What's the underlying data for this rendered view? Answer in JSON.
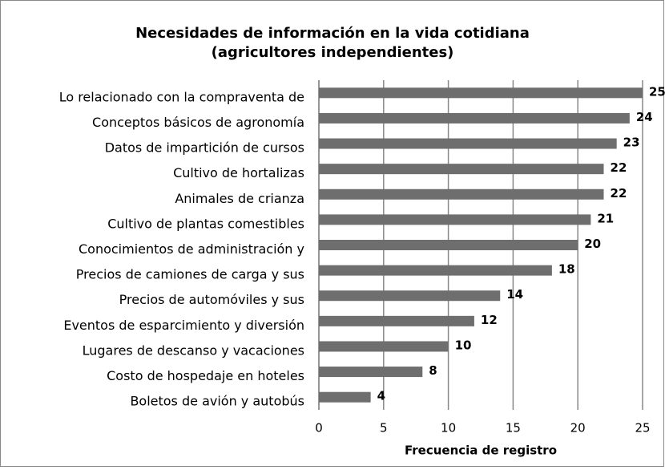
{
  "chart_data": {
    "type": "bar",
    "orientation": "horizontal",
    "title": [
      "Necesidades de información en la vida cotidiana",
      "(agricultores independientes)"
    ],
    "xlabel": "Frecuencia de registro",
    "categories": [
      "Lo relacionado con la compraventa de",
      "Conceptos básicos de agronomía",
      "Datos de impartición de cursos",
      "Cultivo de hortalizas",
      "Animales de crianza",
      "Cultivo de plantas comestibles",
      "Conocimientos de administración y",
      "Precios de camiones de carga y sus",
      "Precios de automóviles y sus",
      "Eventos de esparcimiento y diversión",
      "Lugares de descanso y vacaciones",
      "Costo de hospedaje en hoteles",
      "Boletos de avión y autobús"
    ],
    "values": [
      25,
      24,
      23,
      22,
      22,
      21,
      20,
      18,
      14,
      12,
      10,
      8,
      4
    ],
    "color": "#6e6e6e",
    "xlim": [
      0,
      25
    ],
    "xticks": [
      0,
      5,
      10,
      15,
      20,
      25
    ],
    "grid": true
  }
}
